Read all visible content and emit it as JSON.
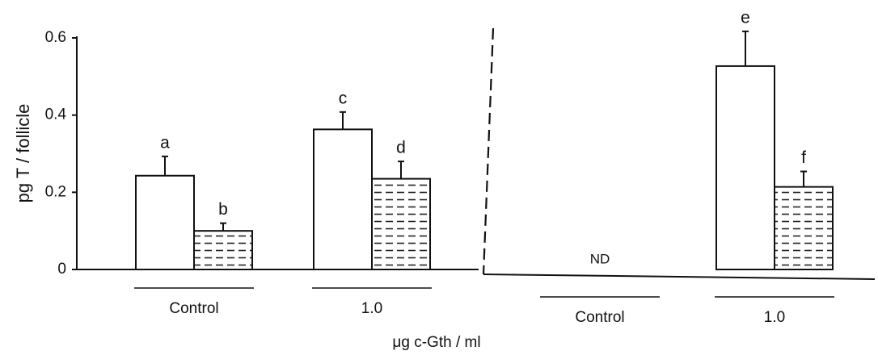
{
  "chart_data": {
    "type": "bar",
    "ylabel": "pg T / follicle",
    "xlabel": "μg c-Gth / ml",
    "categories": [
      "Control",
      "1.0",
      "Control",
      "1.0"
    ],
    "series": [
      {
        "color": "#ffffff",
        "values": [
          0.243,
          0.363,
          null,
          0.527
        ],
        "errors": [
          0.05,
          0.045,
          null,
          0.09
        ],
        "labels": [
          "a",
          "c",
          null,
          "e"
        ]
      },
      {
        "color": "#ffffff",
        "hatch": true,
        "values": [
          0.1,
          0.235,
          null,
          0.214
        ],
        "errors": [
          0.02,
          0.045,
          null,
          0.04
        ],
        "labels": [
          "b",
          "d",
          null,
          "f"
        ]
      }
    ],
    "annotations": [
      {
        "category": 2,
        "text": "ND"
      }
    ],
    "ylim": [
      0,
      0.6
    ],
    "yticks": [
      0,
      0.2,
      0.4,
      0.6
    ]
  }
}
